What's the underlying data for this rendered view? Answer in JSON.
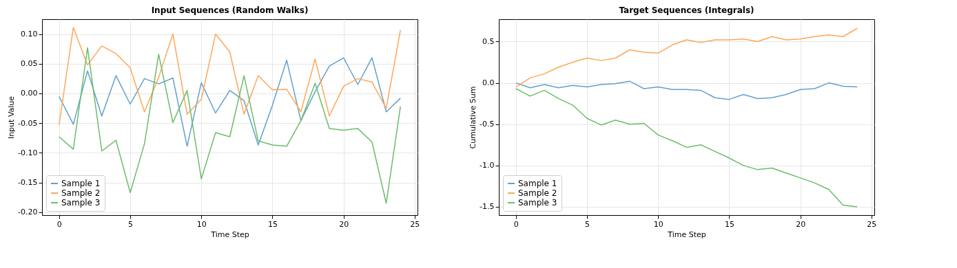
{
  "chart_data": [
    {
      "type": "line",
      "title": "Input Sequences (Random Walks)",
      "xlabel": "Time Step",
      "ylabel": "Input Value",
      "x": [
        0,
        1,
        2,
        3,
        4,
        5,
        6,
        7,
        8,
        9,
        10,
        11,
        12,
        13,
        14,
        15,
        16,
        17,
        18,
        19,
        20,
        21,
        22,
        23,
        24
      ],
      "series": [
        {
          "name": "Sample 1",
          "color": "#62a0ca",
          "values": [
            -0.005,
            -0.052,
            0.038,
            -0.038,
            0.03,
            -0.018,
            0.025,
            0.016,
            0.026,
            -0.089,
            0.018,
            -0.033,
            0.005,
            -0.012,
            -0.087,
            -0.02,
            0.056,
            -0.046,
            0.003,
            0.046,
            0.06,
            0.015,
            0.06,
            -0.031,
            -0.008
          ]
        },
        {
          "name": "Sample 2",
          "color": "#ffa656",
          "values": [
            -0.053,
            0.111,
            0.048,
            0.08,
            0.067,
            0.043,
            -0.031,
            0.027,
            0.1,
            -0.035,
            -0.01,
            0.1,
            0.07,
            -0.035,
            0.03,
            0.006,
            0.007,
            -0.031,
            0.058,
            -0.038,
            0.012,
            0.025,
            0.019,
            -0.025,
            0.107
          ]
        },
        {
          "name": "Sample 3",
          "color": "#6bbc6b",
          "values": [
            -0.073,
            -0.094,
            0.077,
            -0.097,
            -0.079,
            -0.167,
            -0.085,
            0.066,
            -0.049,
            0.005,
            -0.144,
            -0.066,
            -0.073,
            0.03,
            -0.08,
            -0.087,
            -0.089,
            -0.046,
            0.017,
            -0.059,
            -0.062,
            -0.059,
            -0.082,
            -0.185,
            -0.022
          ]
        }
      ],
      "xlim": [
        -1.2,
        25.2
      ],
      "xticks": [
        0,
        5,
        10,
        15,
        20,
        25
      ],
      "ylim": [
        -0.205,
        0.125
      ],
      "yticks": [
        {
          "value": -0.2,
          "label": "-0.20"
        },
        {
          "value": -0.15,
          "label": "-0.15"
        },
        {
          "value": -0.1,
          "label": "-0.10"
        },
        {
          "value": -0.05,
          "label": "-0.05"
        },
        {
          "value": 0,
          "label": "0.00"
        },
        {
          "value": 0.05,
          "label": "0.05"
        },
        {
          "value": 0.1,
          "label": "0.10"
        }
      ],
      "grid": true,
      "legend": "bottom left",
      "line_style": "solid",
      "marker": "none"
    },
    {
      "type": "line",
      "title": "Target Sequences (Integrals)",
      "xlabel": "Time Step",
      "ylabel": "Cumulative Sum",
      "x": [
        0,
        1,
        2,
        3,
        4,
        5,
        6,
        7,
        8,
        9,
        10,
        11,
        12,
        13,
        14,
        15,
        16,
        17,
        18,
        19,
        20,
        21,
        22,
        23,
        24
      ],
      "series": [
        {
          "name": "Sample 1",
          "color": "#62a0ca",
          "values": [
            0,
            -0.06,
            -0.02,
            -0.06,
            -0.03,
            -0.05,
            -0.02,
            -0.01,
            0.02,
            -0.07,
            -0.05,
            -0.08,
            -0.08,
            -0.09,
            -0.18,
            -0.2,
            -0.14,
            -0.19,
            -0.18,
            -0.14,
            -0.08,
            -0.07,
            0,
            -0.04,
            -0.05
          ]
        },
        {
          "name": "Sample 2",
          "color": "#ffa656",
          "values": [
            -0.05,
            0.06,
            0.11,
            0.19,
            0.25,
            0.3,
            0.27,
            0.3,
            0.4,
            0.37,
            0.36,
            0.46,
            0.52,
            0.49,
            0.52,
            0.52,
            0.53,
            0.5,
            0.56,
            0.52,
            0.53,
            0.56,
            0.58,
            0.56,
            0.66
          ]
        },
        {
          "name": "Sample 3",
          "color": "#6bbc6b",
          "values": [
            -0.07,
            -0.16,
            -0.09,
            -0.19,
            -0.27,
            -0.43,
            -0.51,
            -0.45,
            -0.5,
            -0.49,
            -0.63,
            -0.7,
            -0.78,
            -0.75,
            -0.83,
            -0.91,
            -1.0,
            -1.05,
            -1.03,
            -1.09,
            -1.15,
            -1.21,
            -1.29,
            -1.48,
            -1.5
          ]
        }
      ],
      "xlim": [
        -1.2,
        25.2
      ],
      "xticks": [
        0,
        5,
        10,
        15,
        20,
        25
      ],
      "ylim": [
        -1.6,
        0.77
      ],
      "yticks": [
        {
          "value": -1.5,
          "label": "-1.5"
        },
        {
          "value": -1,
          "label": "-1.0"
        },
        {
          "value": -0.5,
          "label": "-0.5"
        },
        {
          "value": 0,
          "label": "0.0"
        },
        {
          "value": 0.5,
          "label": "0.5"
        }
      ],
      "grid": true,
      "legend": "bottom left",
      "line_style": "solid",
      "marker": "none"
    }
  ]
}
